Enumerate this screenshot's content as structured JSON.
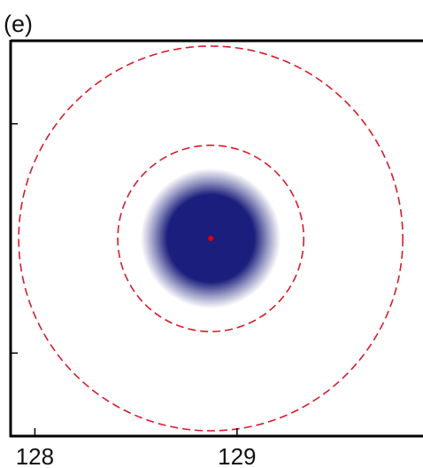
{
  "panel_label": "(e)",
  "chart_data": {
    "type": "heatmap",
    "title": "",
    "xlabel": "",
    "ylabel": "",
    "xlim": [
      127.88,
      129.92
    ],
    "ylim": [
      0,
      1
    ],
    "x_ticks": [
      {
        "value": 128,
        "label": "128"
      },
      {
        "value": 129,
        "label": "129"
      }
    ],
    "y_ticks": [
      0.21,
      0.79
    ],
    "colormap": [
      "#ffffff",
      "#1b1e7c"
    ],
    "blob": {
      "center_x": 128.87,
      "center_y": 0.5,
      "radius_x": 0.33,
      "intensity": 1
    },
    "center_marker": {
      "x": 128.87,
      "y": 0.5,
      "color": "#e00000"
    },
    "circles": [
      {
        "name": "inner",
        "radius_x": 0.46,
        "color": "#d81b2a",
        "style": "dashed"
      },
      {
        "name": "outer",
        "radius_x": 0.95,
        "color": "#d81b2a",
        "style": "dashed"
      }
    ],
    "grid": false,
    "legend": "none"
  }
}
